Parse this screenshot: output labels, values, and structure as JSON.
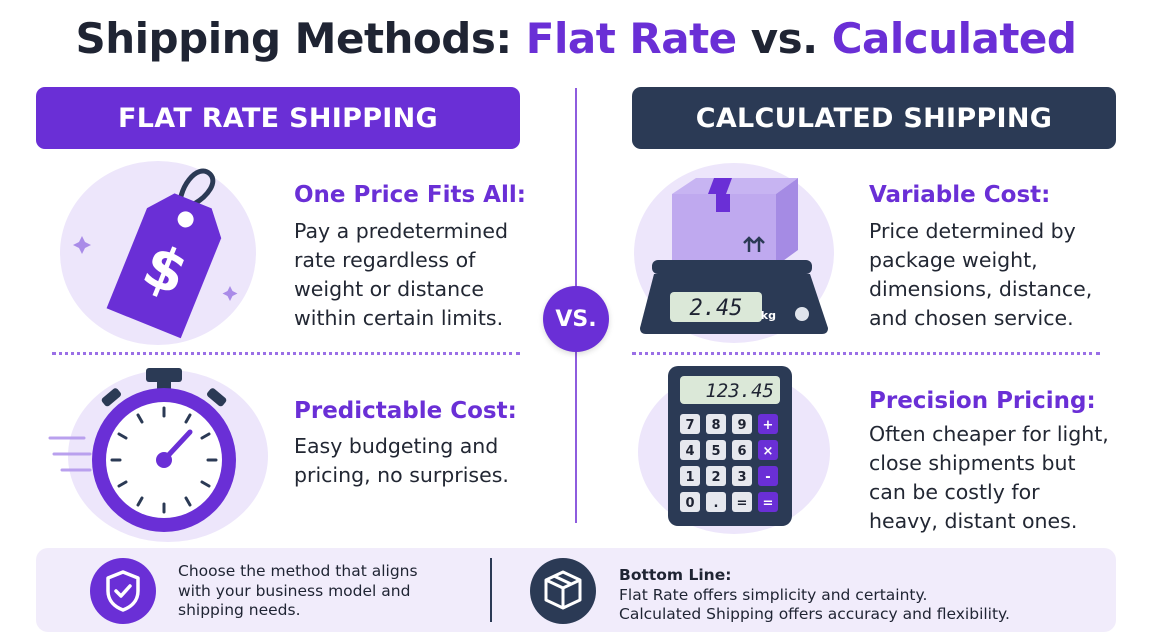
{
  "title": {
    "part1": "Shipping Methods: ",
    "part2": "Flat Rate",
    "part3": " vs. ",
    "part4": "Calculated"
  },
  "left": {
    "banner": "FLAT RATE SHIPPING",
    "item1": {
      "heading": "One Price Fits All:",
      "lines": [
        "Pay a predetermined",
        "rate regardless of",
        "weight or distance",
        "within certain limits."
      ],
      "icon": "price-tag-dollar-icon"
    },
    "item2": {
      "heading": "Predictable Cost:",
      "lines": [
        "Easy budgeting and",
        "pricing, no surprises."
      ],
      "icon": "stopwatch-icon"
    }
  },
  "vs_label": "VS.",
  "right": {
    "banner": "CALCULATED SHIPPING",
    "item1": {
      "heading": "Variable Cost:",
      "lines": [
        "Price determined by",
        "package weight,",
        "dimensions, distance,",
        "and chosen service."
      ],
      "icon": "package-scale-icon",
      "scale_display": "2.45",
      "scale_unit": "kg"
    },
    "item2": {
      "heading": "Precision Pricing:",
      "lines": [
        "Often cheaper for light,",
        "close shipments but",
        "can be costly for",
        "heavy, distant ones."
      ],
      "icon": "calculator-icon",
      "calc_display": "123.45",
      "calc_keys": [
        "7",
        "8",
        "9",
        "+",
        "4",
        "5",
        "6",
        "×",
        "1",
        "2",
        "3",
        "-",
        "0",
        ".",
        "=",
        "="
      ]
    }
  },
  "footer": {
    "left_lines": [
      "Choose the method that aligns",
      "with your business model and",
      "shipping needs."
    ],
    "left_icon": "shield-check-icon",
    "right_heading": "Bottom Line:",
    "right_lines": [
      "Flat Rate offers simplicity and certainty.",
      "Calculated Shipping offers accuracy and flexibility."
    ],
    "right_icon": "box-icon"
  },
  "colors": {
    "purple": "#6a2fd6",
    "navy": "#2b3a55",
    "light_purple": "#f1ecfb"
  }
}
